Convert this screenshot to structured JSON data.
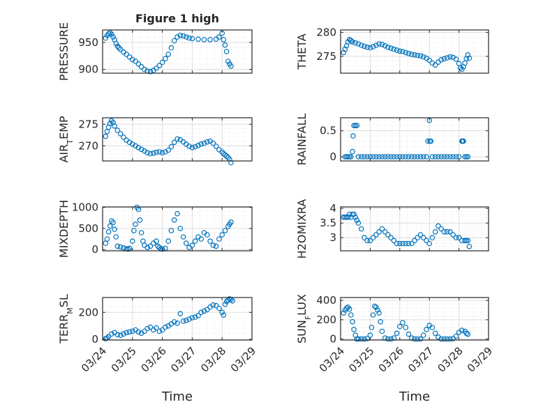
{
  "figure_title": "Figure 1 high",
  "colors": {
    "marker": "#0072BD",
    "axis": "#262626",
    "grid": "#dcdcdc",
    "background": "#ffffff"
  },
  "chart_data": [
    {
      "type": "scatter",
      "title": "Figure 1 high",
      "ylabel": "PRESSURE",
      "xlabel": "",
      "xlim": [
        0,
        5
      ],
      "ylim": [
        893,
        973
      ],
      "yticks": [
        900,
        950
      ],
      "yticklabels": [
        "900",
        "950"
      ],
      "x": [
        0.1,
        0.15,
        0.2,
        0.25,
        0.3,
        0.35,
        0.4,
        0.45,
        0.5,
        0.55,
        0.6,
        0.7,
        0.8,
        0.9,
        1.0,
        1.1,
        1.2,
        1.3,
        1.4,
        1.5,
        1.6,
        1.7,
        1.8,
        1.9,
        2.0,
        2.1,
        2.2,
        2.3,
        2.4,
        2.5,
        2.6,
        2.7,
        2.8,
        2.9,
        3.0,
        3.2,
        3.4,
        3.6,
        3.8,
        3.9,
        4.0,
        4.05,
        4.1,
        4.15,
        4.2,
        4.25,
        4.3
      ],
      "y": [
        958,
        963,
        966,
        968,
        965,
        960,
        955,
        948,
        943,
        940,
        937,
        932,
        928,
        923,
        918,
        915,
        910,
        905,
        900,
        897,
        896,
        898,
        902,
        907,
        913,
        920,
        928,
        940,
        953,
        960,
        963,
        962,
        960,
        958,
        957,
        956,
        955,
        955,
        956,
        960,
        967,
        955,
        945,
        933,
        915,
        910,
        906
      ]
    },
    {
      "type": "scatter",
      "title": "",
      "ylabel": "THETA",
      "xlabel": "",
      "xlim": [
        0,
        5
      ],
      "ylim": [
        271.5,
        280.5
      ],
      "yticks": [
        275,
        280
      ],
      "yticklabels": [
        "275",
        "280"
      ],
      "x": [
        0.1,
        0.15,
        0.2,
        0.25,
        0.3,
        0.35,
        0.4,
        0.5,
        0.6,
        0.7,
        0.8,
        0.9,
        1.0,
        1.1,
        1.2,
        1.3,
        1.4,
        1.5,
        1.6,
        1.7,
        1.8,
        1.9,
        2.0,
        2.1,
        2.2,
        2.3,
        2.4,
        2.5,
        2.6,
        2.7,
        2.8,
        2.9,
        3.0,
        3.1,
        3.2,
        3.3,
        3.4,
        3.5,
        3.6,
        3.7,
        3.8,
        3.9,
        4.0,
        4.05,
        4.1,
        4.15,
        4.2,
        4.25,
        4.3,
        4.35
      ],
      "y": [
        275.8,
        276.5,
        277.2,
        278.0,
        278.5,
        278.3,
        278.0,
        277.8,
        277.6,
        277.3,
        277.1,
        276.9,
        276.8,
        277.0,
        277.3,
        277.6,
        277.5,
        277.2,
        276.9,
        276.7,
        276.5,
        276.3,
        276.1,
        276.0,
        275.8,
        275.6,
        275.4,
        275.3,
        275.2,
        275.1,
        274.9,
        274.6,
        274.2,
        273.6,
        273.2,
        273.8,
        274.3,
        274.5,
        274.7,
        274.9,
        274.8,
        274.4,
        273.5,
        272.6,
        272.3,
        272.8,
        273.6,
        274.5,
        275.3,
        274.6
      ]
    },
    {
      "type": "scatter",
      "title": "",
      "ylabel": "AIR_TEMP",
      "xlabel": "",
      "xlim": [
        0,
        5
      ],
      "ylim": [
        266.5,
        276.5
      ],
      "yticks": [
        270,
        275
      ],
      "yticklabels": [
        "270",
        "275"
      ],
      "x": [
        0.1,
        0.15,
        0.2,
        0.25,
        0.3,
        0.35,
        0.4,
        0.5,
        0.6,
        0.7,
        0.8,
        0.9,
        1.0,
        1.1,
        1.2,
        1.3,
        1.4,
        1.5,
        1.6,
        1.7,
        1.8,
        1.9,
        2.0,
        2.1,
        2.2,
        2.3,
        2.4,
        2.5,
        2.6,
        2.7,
        2.8,
        2.9,
        3.0,
        3.1,
        3.2,
        3.3,
        3.4,
        3.5,
        3.6,
        3.7,
        3.8,
        3.9,
        4.0,
        4.05,
        4.1,
        4.15,
        4.2,
        4.25,
        4.3
      ],
      "y": [
        272.2,
        273.3,
        274.3,
        275.2,
        275.8,
        275.4,
        274.6,
        273.6,
        272.8,
        272.0,
        271.3,
        270.8,
        270.4,
        270.0,
        269.6,
        269.2,
        268.8,
        268.4,
        268.2,
        268.3,
        268.5,
        268.6,
        268.4,
        268.6,
        269.0,
        269.8,
        270.8,
        271.6,
        271.4,
        270.9,
        270.4,
        269.9,
        269.6,
        269.8,
        270.1,
        270.4,
        270.6,
        270.9,
        271.1,
        270.6,
        269.9,
        269.1,
        268.6,
        268.2,
        267.9,
        267.6,
        267.3,
        266.9,
        266.1
      ]
    },
    {
      "type": "scatter",
      "title": "",
      "ylabel": "RAINFALL",
      "xlabel": "",
      "xlim": [
        0,
        5
      ],
      "ylim": [
        -0.08,
        0.75
      ],
      "yticks": [
        0,
        0.5
      ],
      "yticklabels": [
        "0",
        "0.5"
      ],
      "x": [
        0.15,
        0.2,
        0.25,
        0.3,
        0.35,
        0.4,
        0.42,
        0.45,
        0.5,
        0.55,
        0.6,
        0.7,
        0.8,
        0.9,
        1.0,
        1.1,
        1.2,
        1.3,
        1.4,
        1.5,
        1.6,
        1.7,
        1.8,
        1.9,
        2.0,
        2.1,
        2.2,
        2.3,
        2.4,
        2.5,
        2.6,
        2.7,
        2.8,
        2.9,
        2.95,
        3.0,
        3.02,
        3.05,
        3.1,
        3.2,
        3.3,
        3.4,
        3.5,
        3.6,
        3.7,
        3.8,
        3.9,
        4.0,
        4.1,
        4.12,
        4.15,
        4.2,
        4.25,
        4.3
      ],
      "y": [
        0,
        0,
        0,
        0,
        0,
        0.1,
        0.4,
        0.6,
        0.6,
        0.6,
        0,
        0,
        0,
        0,
        0,
        0,
        0,
        0,
        0,
        0,
        0,
        0,
        0,
        0,
        0,
        0,
        0,
        0,
        0,
        0,
        0,
        0,
        0,
        0,
        0.3,
        0.7,
        0.3,
        0.3,
        0,
        0,
        0,
        0,
        0,
        0,
        0,
        0,
        0,
        0,
        0.3,
        0.3,
        0.3,
        0,
        0,
        0
      ]
    },
    {
      "type": "scatter",
      "title": "",
      "ylabel": "MIXDEPTH",
      "xlabel": "",
      "xlim": [
        0,
        5
      ],
      "ylim": [
        -30,
        1010
      ],
      "yticks": [
        0,
        500,
        1000
      ],
      "yticklabels": [
        "0",
        "500",
        "1000"
      ],
      "x": [
        0.1,
        0.15,
        0.2,
        0.25,
        0.3,
        0.35,
        0.4,
        0.45,
        0.5,
        0.6,
        0.7,
        0.8,
        0.85,
        0.9,
        1.0,
        1.05,
        1.1,
        1.15,
        1.2,
        1.25,
        1.3,
        1.35,
        1.4,
        1.5,
        1.6,
        1.7,
        1.8,
        1.85,
        1.9,
        1.95,
        2.0,
        2.1,
        2.2,
        2.3,
        2.4,
        2.5,
        2.6,
        2.7,
        2.8,
        2.9,
        3.0,
        3.1,
        3.2,
        3.3,
        3.4,
        3.5,
        3.6,
        3.7,
        3.8,
        3.9,
        4.0,
        4.1,
        4.2,
        4.25,
        4.3
      ],
      "y": [
        150,
        250,
        420,
        560,
        680,
        640,
        480,
        300,
        80,
        60,
        40,
        20,
        10,
        30,
        200,
        450,
        600,
        1000,
        950,
        700,
        400,
        200,
        100,
        50,
        80,
        150,
        200,
        80,
        50,
        20,
        10,
        30,
        200,
        450,
        700,
        850,
        500,
        300,
        150,
        50,
        100,
        200,
        300,
        250,
        400,
        350,
        200,
        100,
        80,
        250,
        350,
        450,
        550,
        600,
        650
      ]
    },
    {
      "type": "scatter",
      "title": "",
      "ylabel": "H2OMIXRA",
      "xlabel": "",
      "xlim": [
        0,
        5
      ],
      "ylim": [
        2.55,
        4.05
      ],
      "yticks": [
        3,
        3.5,
        4
      ],
      "yticklabels": [
        "3",
        "3.5",
        "4"
      ],
      "x": [
        0.1,
        0.15,
        0.2,
        0.25,
        0.3,
        0.35,
        0.4,
        0.45,
        0.5,
        0.55,
        0.6,
        0.7,
        0.8,
        0.9,
        1.0,
        1.1,
        1.2,
        1.3,
        1.4,
        1.5,
        1.6,
        1.7,
        1.8,
        1.9,
        2.0,
        2.1,
        2.2,
        2.3,
        2.4,
        2.5,
        2.6,
        2.7,
        2.8,
        2.9,
        3.0,
        3.1,
        3.2,
        3.3,
        3.4,
        3.5,
        3.6,
        3.7,
        3.8,
        3.9,
        4.0,
        4.1,
        4.2,
        4.25,
        4.3,
        4.35
      ],
      "y": [
        3.7,
        3.7,
        3.7,
        3.7,
        3.8,
        3.7,
        3.8,
        3.8,
        3.7,
        3.6,
        3.5,
        3.3,
        3.0,
        2.9,
        2.9,
        3.0,
        3.1,
        3.2,
        3.3,
        3.2,
        3.1,
        3.0,
        2.9,
        2.8,
        2.8,
        2.8,
        2.8,
        2.8,
        2.8,
        2.9,
        3.0,
        3.1,
        3.0,
        2.9,
        2.8,
        3.0,
        3.2,
        3.4,
        3.3,
        3.2,
        3.2,
        3.2,
        3.1,
        3.0,
        3.0,
        2.9,
        2.9,
        2.9,
        2.9,
        2.7
      ]
    },
    {
      "type": "scatter",
      "title": "",
      "ylabel": "TERR_MSL",
      "xlabel": "Time",
      "xlim": [
        0,
        5
      ],
      "ylim": [
        -5,
        310
      ],
      "yticks": [
        0,
        200
      ],
      "yticklabels": [
        "0",
        "200"
      ],
      "xticklabels": [
        "03/24",
        "03/25",
        "03/26",
        "03/27",
        "03/28",
        "03/29"
      ],
      "x": [
        0.1,
        0.15,
        0.2,
        0.3,
        0.4,
        0.5,
        0.6,
        0.7,
        0.8,
        0.9,
        1.0,
        1.1,
        1.2,
        1.3,
        1.4,
        1.5,
        1.6,
        1.7,
        1.8,
        1.9,
        2.0,
        2.1,
        2.2,
        2.3,
        2.4,
        2.5,
        2.6,
        2.7,
        2.8,
        2.9,
        3.0,
        3.1,
        3.2,
        3.3,
        3.4,
        3.5,
        3.6,
        3.7,
        3.8,
        3.9,
        4.0,
        4.05,
        4.1,
        4.15,
        4.2,
        4.25,
        4.3,
        4.35
      ],
      "y": [
        5,
        10,
        20,
        40,
        50,
        35,
        30,
        40,
        50,
        55,
        60,
        70,
        55,
        45,
        60,
        80,
        90,
        70,
        85,
        60,
        70,
        90,
        100,
        115,
        130,
        120,
        190,
        135,
        140,
        150,
        160,
        165,
        175,
        200,
        210,
        220,
        240,
        255,
        250,
        230,
        200,
        180,
        260,
        280,
        290,
        300,
        295,
        285
      ]
    },
    {
      "type": "scatter",
      "title": "",
      "ylabel": "SUN_FLUX",
      "xlabel": "Time",
      "xlim": [
        0,
        5
      ],
      "ylim": [
        -10,
        430
      ],
      "yticks": [
        0,
        200,
        400
      ],
      "yticklabels": [
        "0",
        "200",
        "400"
      ],
      "xticklabels": [
        "03/24",
        "03/25",
        "03/26",
        "03/27",
        "03/28",
        "03/29"
      ],
      "x": [
        0.1,
        0.15,
        0.2,
        0.25,
        0.3,
        0.35,
        0.4,
        0.45,
        0.5,
        0.55,
        0.6,
        0.7,
        0.8,
        0.9,
        1.0,
        1.05,
        1.1,
        1.15,
        1.2,
        1.25,
        1.3,
        1.35,
        1.4,
        1.5,
        1.6,
        1.7,
        1.8,
        1.9,
        2.0,
        2.1,
        2.2,
        2.3,
        2.4,
        2.5,
        2.6,
        2.7,
        2.8,
        2.9,
        3.0,
        3.1,
        3.2,
        3.3,
        3.4,
        3.5,
        3.6,
        3.7,
        3.8,
        3.9,
        4.0,
        4.1,
        4.2,
        4.25,
        4.3
      ],
      "y": [
        270,
        300,
        320,
        330,
        310,
        250,
        180,
        100,
        40,
        0,
        0,
        0,
        0,
        5,
        40,
        120,
        250,
        340,
        330,
        300,
        270,
        180,
        80,
        10,
        0,
        0,
        10,
        60,
        130,
        170,
        120,
        50,
        10,
        0,
        0,
        0,
        40,
        100,
        140,
        120,
        60,
        20,
        0,
        0,
        0,
        0,
        5,
        30,
        70,
        90,
        80,
        60,
        50
      ]
    }
  ]
}
